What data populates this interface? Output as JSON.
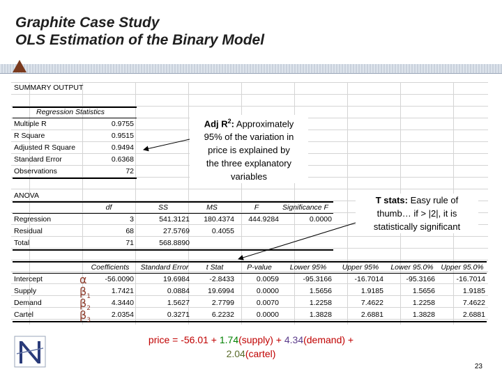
{
  "slide": {
    "title_line1": "Graphite Case Study",
    "title_line2": "OLS Estimation of the Binary Model",
    "page_number": "23"
  },
  "summary": {
    "header": "SUMMARY OUTPUT",
    "regression_statistics_title": "Regression Statistics",
    "stats": [
      {
        "label": "Multiple R",
        "value": "0.9755"
      },
      {
        "label": "R Square",
        "value": "0.9515"
      },
      {
        "label": "Adjusted R Square",
        "value": "0.9494"
      },
      {
        "label": "Standard Error",
        "value": "0.6368"
      },
      {
        "label": "Observations",
        "value": "72"
      }
    ]
  },
  "anova": {
    "title": "ANOVA",
    "headers": [
      "df",
      "SS",
      "MS",
      "F",
      "Significance F"
    ],
    "rows": [
      {
        "label": "Regression",
        "df": "3",
        "ss": "541.3121",
        "ms": "180.4374",
        "f": "444.9284",
        "sigf": "0.0000"
      },
      {
        "label": "Residual",
        "df": "68",
        "ss": "27.5769",
        "ms": "0.4055",
        "f": "",
        "sigf": ""
      },
      {
        "label": "Total",
        "df": "71",
        "ss": "568.8890",
        "ms": "",
        "f": "",
        "sigf": ""
      }
    ]
  },
  "coefficients": {
    "headers": [
      "Coefficients",
      "Standard Error",
      "t Stat",
      "P-value",
      "Lower 95%",
      "Upper 95%",
      "Lower 95.0%",
      "Upper 95.0%"
    ],
    "rows": [
      {
        "label": "Intercept",
        "vals": [
          "-56.0090",
          "19.6984",
          "-2.8433",
          "0.0059",
          "-95.3166",
          "-16.7014",
          "-95.3166",
          "-16.7014"
        ]
      },
      {
        "label": "Supply",
        "vals": [
          "1.7421",
          "0.0884",
          "19.6994",
          "0.0000",
          "1.5656",
          "1.9185",
          "1.5656",
          "1.9185"
        ]
      },
      {
        "label": "Demand",
        "vals": [
          "4.3440",
          "1.5627",
          "2.7799",
          "0.0070",
          "1.2258",
          "7.4622",
          "1.2258",
          "7.4622"
        ]
      },
      {
        "label": "Cartel",
        "vals": [
          "2.0354",
          "0.3271",
          "6.2232",
          "0.0000",
          "1.3828",
          "2.6881",
          "1.3828",
          "2.6881"
        ]
      }
    ]
  },
  "greek": {
    "alpha": "α",
    "beta": "β",
    "sub1": "1",
    "sub2": "2",
    "sub3": "3"
  },
  "notes": {
    "adj_r2_bold": "Adj R",
    "adj_r2_sup": "2",
    "adj_r2_colon": ":",
    "adj_r2_text_line1": " Approximately",
    "adj_r2_text_line2": "95% of the variation in",
    "adj_r2_text_line3": "price is explained by",
    "adj_r2_text_line4": "the three explanatory",
    "adj_r2_text_line5": "variables",
    "tstats_bold": "T stats:",
    "tstats_line1": " Easy rule of",
    "tstats_line2": "thumb… if > |2|, it is",
    "tstats_line3": "statistically significant"
  },
  "equation": {
    "part1": "price = -56.01 + ",
    "coef_supply": "1.74",
    "supply": "(supply) + ",
    "coef_demand": "4.34",
    "demand": "(demand) +",
    "coef_cartel": "2.04",
    "cartel": "(cartel)"
  },
  "colors": {
    "greek": "#8b3a2a",
    "title": "#1f1f1f",
    "triangle": "#7a3a1e",
    "eq_price": "#c00000",
    "eq_supply": "#008000",
    "eq_demand": "#5a3a8a",
    "eq_cartel": "#5a6a2a"
  },
  "icons": {
    "logo": "N-logo-icon"
  }
}
